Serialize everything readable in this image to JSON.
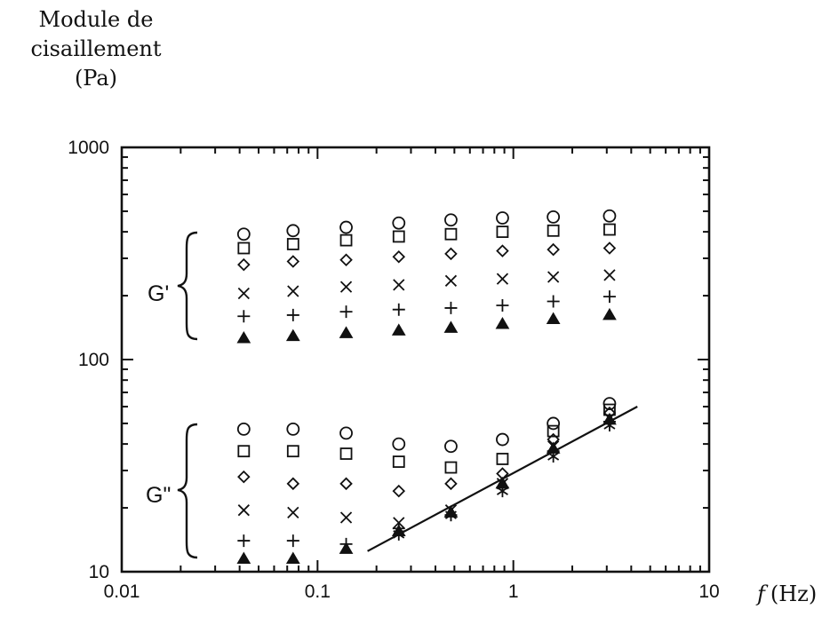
{
  "chart_data": {
    "type": "scatter",
    "ylabel_lines": [
      "Module de",
      "cisaillement",
      "(Pa)"
    ],
    "xlabel_var": "f",
    "xlabel_unit": "(Hz)",
    "xscale": "log",
    "yscale": "log",
    "xlim": [
      0.01,
      10
    ],
    "ylim": [
      10,
      1000
    ],
    "x_ticks": [
      "0.01",
      "0.1",
      "1",
      "10"
    ],
    "y_ticks": [
      "10",
      "100",
      "1000"
    ],
    "grid": false,
    "group_labels": [
      "G'",
      "G\""
    ],
    "x": [
      0.042,
      0.075,
      0.14,
      0.26,
      0.48,
      0.88,
      1.6,
      3.1
    ],
    "series": [
      {
        "marker": "circle",
        "g_prime": [
          390,
          405,
          420,
          440,
          455,
          465,
          470,
          475
        ],
        "g_double_prime": [
          47,
          47,
          45,
          40,
          39,
          42,
          50,
          62
        ]
      },
      {
        "marker": "square",
        "g_prime": [
          335,
          350,
          365,
          380,
          390,
          400,
          405,
          410
        ],
        "g_double_prime": [
          37,
          37,
          36,
          33,
          31,
          34,
          46,
          58
        ]
      },
      {
        "marker": "diamond",
        "g_prime": [
          280,
          290,
          295,
          305,
          315,
          325,
          330,
          335
        ],
        "g_double_prime": [
          28,
          26,
          26,
          24,
          26,
          29,
          42,
          56
        ]
      },
      {
        "marker": "x",
        "g_prime": [
          205,
          210,
          220,
          225,
          235,
          240,
          245,
          250
        ],
        "g_double_prime": [
          19.5,
          19,
          18,
          17,
          19.5,
          26,
          39,
          53
        ]
      },
      {
        "marker": "plus",
        "g_prime": [
          160,
          162,
          168,
          172,
          175,
          180,
          188,
          198
        ],
        "g_double_prime": [
          14,
          14,
          13.5,
          16,
          18.5,
          25,
          37,
          51
        ]
      },
      {
        "marker": "triangle-filled",
        "g_prime": [
          126,
          129,
          133,
          137,
          141,
          147,
          155,
          162
        ],
        "g_double_prime": [
          11.5,
          11.5,
          12.8,
          15.5,
          19,
          26,
          38,
          52
        ]
      },
      {
        "marker": "asterisk",
        "g_prime": [],
        "g_double_prime": [
          null,
          null,
          null,
          15,
          18.5,
          24,
          35,
          49
        ]
      }
    ],
    "fit_line": {
      "x": [
        0.18,
        4.3
      ],
      "y": [
        12.5,
        60
      ]
    }
  }
}
